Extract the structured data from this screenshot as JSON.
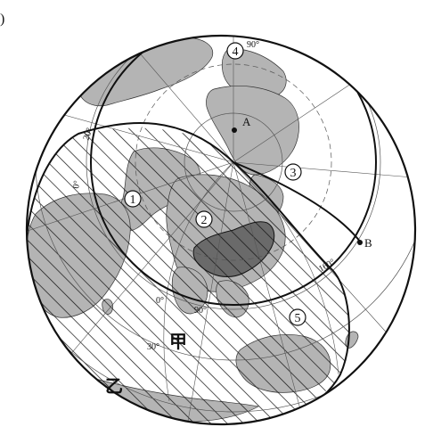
{
  "edge_mark": ")",
  "labels": {
    "A": "A",
    "B": "B",
    "jia": "甲",
    "yi": "乙",
    "n1": "1",
    "n2": "2",
    "n3": "3",
    "n4": "4",
    "n5": "5",
    "deg90_top": "90°",
    "deg20": "20°",
    "deg0_left": "0°",
    "deg0_bottom": "0°",
    "deg90_bottom": "90°",
    "deg30": "30°",
    "deg160": "160°"
  },
  "colors": {
    "land": "#b4b4b4",
    "china": "#6a6a6a",
    "ink": "#111111",
    "graticule": "#555555"
  }
}
